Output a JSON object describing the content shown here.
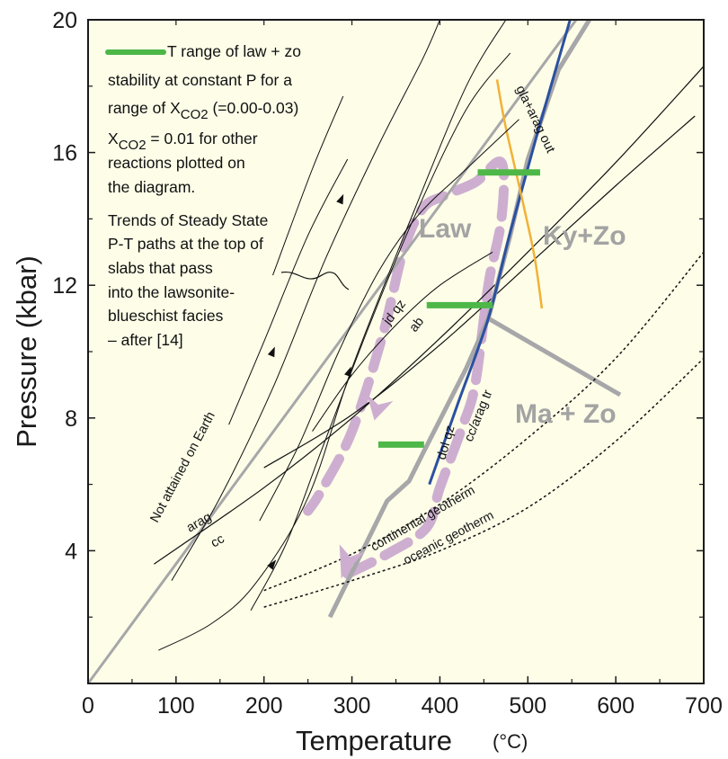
{
  "chart_data": {
    "type": "line",
    "title": "",
    "xlabel": "Temperature",
    "xunit": "(°C)",
    "ylabel": "Pressure (kbar)",
    "xlim": [
      0,
      700
    ],
    "ylim": [
      0,
      20
    ],
    "xticks": [
      0,
      100,
      200,
      300,
      400,
      500,
      600,
      700
    ],
    "yticks_labeled": [
      4,
      8,
      12,
      16,
      20
    ],
    "yticks_minor": [
      2,
      6,
      10,
      14,
      18
    ],
    "background_color": "#fdfde8",
    "colors": {
      "gray": "#a7a7a9",
      "blue": "#2b50a0",
      "orange": "#f2b135",
      "green": "#4db748",
      "purple": "#cdaed0",
      "black": "#111111"
    },
    "legend": {
      "bar_text": "T range of law + zo",
      "lines": [
        "stability at constant P for a",
        "range of X",
        "X",
        "reactions plotted on",
        "the diagram.",
        "Trends of Steady State",
        "P-T paths at the top of",
        " slabs that pass",
        "into the lawsonite-",
        "blueschist facies",
        " – after [14]"
      ],
      "sub_co2": "CO2",
      "range_suffix": " (=0.00-0.03)",
      "xco2_suffix": " = 0.01 for other"
    },
    "field_labels": {
      "law": "Law",
      "kyzo": "Ky+Zo",
      "mazo": "Ma + Zo"
    },
    "reaction_labels": {
      "not_attained": "Not attained on Earth",
      "jdqz": "jd qz",
      "ab": "ab",
      "arag": "arag",
      "cc": "cc",
      "dolqz": "dol qz",
      "ccarag": "cc/arag tr",
      "glaarag": "gla+arag out",
      "continental": "continental geotherm",
      "oceanic": "oceanic geotherm"
    },
    "series": [
      {
        "key": "not_attained",
        "color": "gray",
        "width": 3,
        "points": [
          [
            0,
            0
          ],
          [
            555,
            20
          ]
        ]
      },
      {
        "key": "jdqz_ab",
        "color": "black",
        "width": 1.2,
        "points": [
          [
            75,
            3.6
          ],
          [
            200,
            5.9
          ],
          [
            300,
            8.0
          ],
          [
            400,
            10.4
          ],
          [
            500,
            13.0
          ],
          [
            600,
            15.7
          ],
          [
            700,
            18.6
          ]
        ]
      },
      {
        "key": "arag_cc",
        "color": "black",
        "width": 1.2,
        "points": [
          [
            200,
            6.5
          ],
          [
            300,
            8.1
          ],
          [
            400,
            10.2
          ],
          [
            500,
            12.6
          ],
          [
            600,
            15.0
          ],
          [
            690,
            17.1
          ]
        ]
      },
      {
        "key": "kyzo_gray",
        "color": "gray",
        "width": 5,
        "points": [
          [
            275,
            2.0
          ],
          [
            340,
            5.5
          ],
          [
            365,
            6.1
          ],
          [
            380,
            6.9
          ],
          [
            430,
            9.5
          ],
          [
            455,
            11.0
          ],
          [
            480,
            13.5
          ],
          [
            500,
            15.8
          ],
          [
            535,
            18.5
          ],
          [
            570,
            20.0
          ]
        ]
      },
      {
        "key": "mazo_gray",
        "color": "gray",
        "width": 5,
        "points": [
          [
            455,
            11.0
          ],
          [
            605,
            8.7
          ]
        ]
      },
      {
        "key": "ccarag_blue",
        "color": "blue",
        "width": 3,
        "points": [
          [
            388,
            6.0
          ],
          [
            420,
            8.4
          ],
          [
            455,
            11.0
          ],
          [
            480,
            13.6
          ],
          [
            510,
            16.5
          ],
          [
            548,
            20.0
          ]
        ]
      },
      {
        "key": "glaarag_orange",
        "color": "orange",
        "width": 2.5,
        "points": [
          [
            465,
            18.2
          ],
          [
            473,
            17.0
          ],
          [
            484,
            15.7
          ],
          [
            496,
            14.3
          ],
          [
            508,
            12.8
          ],
          [
            516,
            11.3
          ]
        ]
      },
      {
        "key": "continental_geotherm",
        "color": "black",
        "width": 1.5,
        "dash": "3,3",
        "points": [
          [
            200,
            2.8
          ],
          [
            300,
            3.9
          ],
          [
            400,
            5.4
          ],
          [
            500,
            7.4
          ],
          [
            600,
            9.8
          ],
          [
            700,
            13.0
          ]
        ]
      },
      {
        "key": "oceanic_geotherm",
        "color": "black",
        "width": 1.5,
        "dash": "3,3",
        "points": [
          [
            200,
            2.3
          ],
          [
            300,
            3.1
          ],
          [
            400,
            4.0
          ],
          [
            500,
            5.3
          ],
          [
            600,
            7.3
          ],
          [
            700,
            9.8
          ]
        ]
      },
      {
        "key": "ss_path_1",
        "color": "black",
        "width": 1,
        "points": [
          [
            80,
            1.0
          ],
          [
            140,
            1.8
          ],
          [
            190,
            3.0
          ],
          [
            250,
            5.6
          ],
          [
            300,
            9.5
          ],
          [
            370,
            14.2
          ],
          [
            430,
            18.0
          ],
          [
            475,
            20.0
          ]
        ]
      },
      {
        "key": "ss_path_2",
        "color": "black",
        "width": 1,
        "points": [
          [
            95,
            3.1
          ],
          [
            150,
            5.6
          ],
          [
            210,
            8.9
          ],
          [
            270,
            12.8
          ],
          [
            330,
            16.2
          ],
          [
            380,
            18.8
          ],
          [
            400,
            20.0
          ]
        ]
      },
      {
        "key": "ss_path_3",
        "color": "black",
        "width": 1,
        "points": [
          [
            185,
            2.2
          ],
          [
            225,
            4.2
          ],
          [
            265,
            7.0
          ],
          [
            320,
            10.8
          ],
          [
            370,
            14.0
          ],
          [
            430,
            17.3
          ],
          [
            480,
            19.0
          ]
        ]
      },
      {
        "key": "ss_path_4",
        "color": "black",
        "width": 1,
        "points": [
          [
            195,
            4.9
          ],
          [
            240,
            7.2
          ],
          [
            285,
            10.0
          ],
          [
            330,
            12.4
          ],
          [
            375,
            14.1
          ],
          [
            430,
            15.5
          ],
          [
            490,
            17.0
          ]
        ]
      },
      {
        "key": "ss_path_5",
        "color": "black",
        "width": 1,
        "points": [
          [
            255,
            7.6
          ],
          [
            300,
            9.3
          ],
          [
            350,
            10.8
          ],
          [
            400,
            12.0
          ],
          [
            460,
            13.0
          ]
        ]
      },
      {
        "key": "ss_path_6",
        "color": "black",
        "width": 1,
        "points": [
          [
            160,
            7.8
          ],
          [
            200,
            10.3
          ],
          [
            250,
            13.5
          ],
          [
            295,
            15.8
          ]
        ]
      },
      {
        "key": "ss_path_7",
        "color": "black",
        "width": 1,
        "points": [
          [
            210,
            12.3
          ],
          [
            255,
            15.5
          ],
          [
            290,
            17.7
          ]
        ]
      },
      {
        "key": "lbs_path",
        "color": "purple",
        "width": 11,
        "dash": "30,16",
        "points": [
          [
            295,
            3.3
          ],
          [
            340,
            3.9
          ],
          [
            385,
            4.7
          ],
          [
            400,
            5.9
          ],
          [
            425,
            7.7
          ],
          [
            440,
            9.0
          ],
          [
            455,
            12.0
          ],
          [
            470,
            14.0
          ],
          [
            470,
            15.7
          ],
          [
            440,
            15.1
          ],
          [
            405,
            14.7
          ],
          [
            380,
            14.3
          ],
          [
            358,
            13.0
          ],
          [
            335,
            10.5
          ],
          [
            300,
            7.6
          ],
          [
            265,
            5.8
          ],
          [
            250,
            5.2
          ]
        ]
      }
    ],
    "green_bars": [
      {
        "p": 15.4,
        "t0": 443,
        "t1": 514
      },
      {
        "p": 11.4,
        "t0": 385,
        "t1": 460
      },
      {
        "p": 7.2,
        "t0": 330,
        "t1": 382
      }
    ],
    "arrows": [
      {
        "series": "ss_path_1",
        "at": [
          210,
          3.6
        ]
      },
      {
        "series": "ss_path_1",
        "at": [
          297,
          9.4
        ]
      },
      {
        "series": "ss_path_2",
        "at": [
          288,
          14.6
        ]
      },
      {
        "series": "ss_path_6",
        "at": [
          210,
          10.0
        ]
      }
    ]
  }
}
